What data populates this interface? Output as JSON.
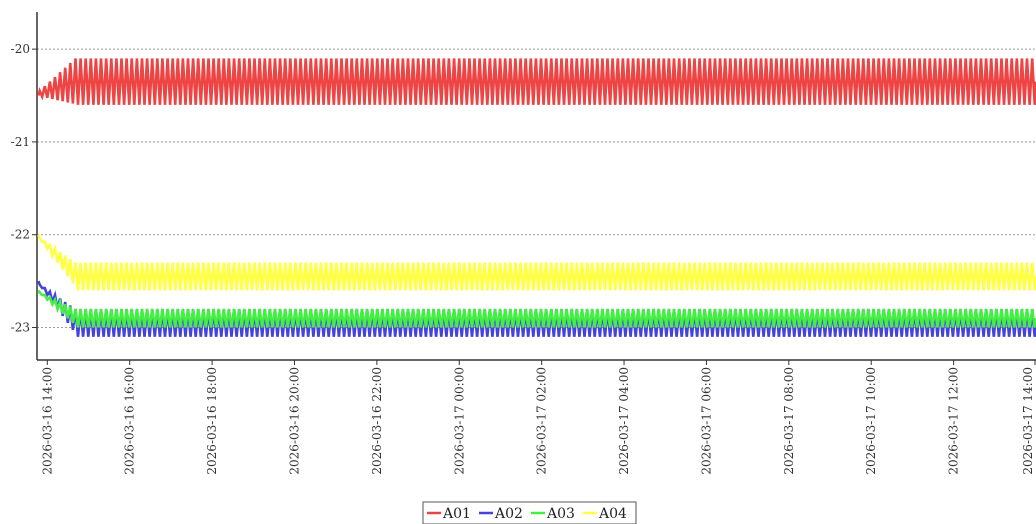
{
  "chart_data": {
    "type": "line",
    "title": "",
    "xlabel": "",
    "ylabel": "",
    "grid": true,
    "legend_position": "bottom-center",
    "x_range": [
      "2026-03-16 13:45",
      "2026-03-17 14:00"
    ],
    "ylim": [
      -23.35,
      -19.6
    ],
    "y_ticks": [
      -20,
      -21,
      -22,
      -23
    ],
    "x_ticks": [
      "2026-03-16 14:00",
      "2026-03-16 16:00",
      "2026-03-16 18:00",
      "2026-03-16 20:00",
      "2026-03-16 22:00",
      "2026-03-17 00:00",
      "2026-03-17 02:00",
      "2026-03-17 04:00",
      "2026-03-17 06:00",
      "2026-03-17 08:00",
      "2026-03-17 10:00",
      "2026-03-17 12:00",
      "2026-03-17 14:00"
    ],
    "series": [
      {
        "name": "A01",
        "color": "#ee4444",
        "start": "2026-03-16 13:47",
        "end": "2026-03-17 14:00",
        "cycles": 195,
        "low": -20.6,
        "high": -20.1,
        "first_value": -20.5
      },
      {
        "name": "A02",
        "color": "#4444dd",
        "start": "2026-03-16 13:47",
        "end": "2026-03-17 14:00",
        "cycles": 195,
        "low": -23.1,
        "high": -22.8,
        "first_value": -22.5
      },
      {
        "name": "A03",
        "color": "#44ee44",
        "start": "2026-03-16 13:47",
        "end": "2026-03-17 14:00",
        "cycles": 195,
        "low": -23.0,
        "high": -22.8,
        "first_value": -22.6
      },
      {
        "name": "A04",
        "color": "#ffff44",
        "start": "2026-03-16 13:47",
        "end": "2026-03-17 14:00",
        "cycles": 195,
        "low": -22.6,
        "high": -22.3,
        "first_value": -22.0
      }
    ]
  }
}
